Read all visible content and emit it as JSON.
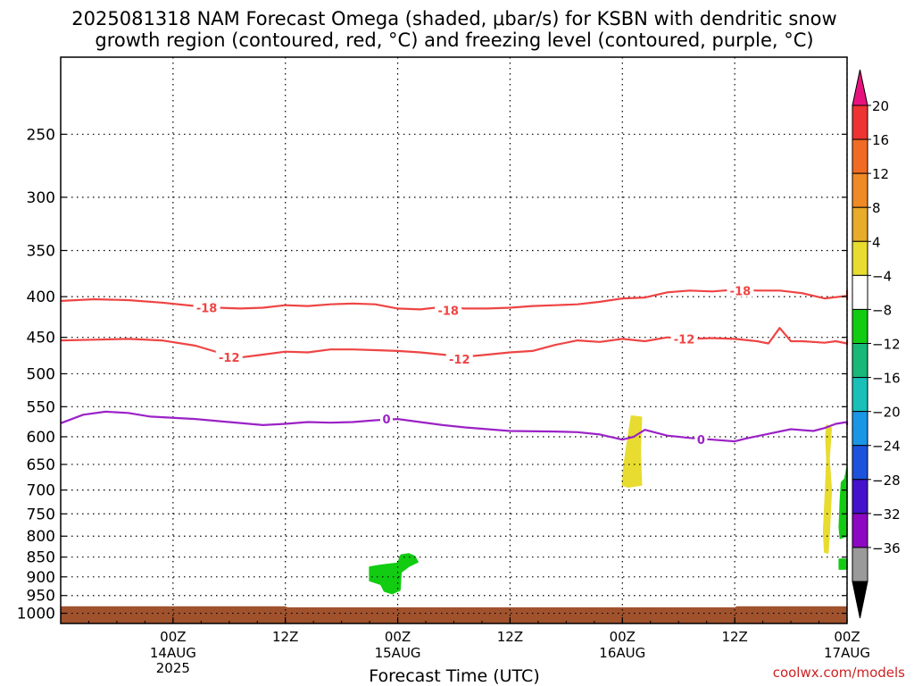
{
  "chart_data": {
    "type": "time-height",
    "title_lines": [
      "2025081318 NAM Forecast Omega (shaded, μbar/s) for KSBN with dendritic snow",
      "growth region (contoured, red, °C) and freezing level (contoured, purple, °C)"
    ],
    "xlabel": "Forecast Time (UTC)",
    "credit": "coolwx.com/models",
    "y_axis": {
      "scale": "log",
      "range": [
        200,
        1030
      ],
      "ticks": [
        250,
        300,
        350,
        400,
        450,
        500,
        550,
        600,
        650,
        700,
        750,
        800,
        850,
        900,
        950,
        1000
      ]
    },
    "x_axis": {
      "range_hours": [
        -10,
        60
      ],
      "ticks": [
        {
          "hour": 0,
          "label": "00Z",
          "sub": [
            "14AUG",
            "2025"
          ]
        },
        {
          "hour": 10,
          "label": "12Z",
          "sub": []
        },
        {
          "hour": 20,
          "label": "00Z",
          "sub": [
            "15AUG"
          ]
        },
        {
          "hour": 30,
          "label": "12Z",
          "sub": []
        },
        {
          "hour": 40,
          "label": "00Z",
          "sub": [
            "16AUG"
          ]
        },
        {
          "hour": 50,
          "label": "12Z",
          "sub": []
        },
        {
          "hour": 60,
          "label": "00Z",
          "sub": [
            "17AUG"
          ]
        }
      ]
    },
    "contours": [
      {
        "level": "-18",
        "color": "#ef4444",
        "points": [
          [
            -10,
            405
          ],
          [
            -7,
            403
          ],
          [
            -4,
            404
          ],
          [
            -1,
            407
          ],
          [
            2,
            411
          ],
          [
            4,
            413
          ],
          [
            6,
            414
          ],
          [
            8,
            413
          ],
          [
            10,
            410
          ],
          [
            12,
            411
          ],
          [
            14,
            409
          ],
          [
            16,
            408
          ],
          [
            18,
            409
          ],
          [
            20,
            414
          ],
          [
            22,
            415
          ],
          [
            24,
            412
          ],
          [
            26,
            414
          ],
          [
            28,
            414
          ],
          [
            30,
            413
          ],
          [
            32,
            411
          ],
          [
            34,
            410
          ],
          [
            36,
            409
          ],
          [
            38,
            406
          ],
          [
            40,
            402
          ],
          [
            42,
            401
          ],
          [
            44,
            395
          ],
          [
            46,
            393
          ],
          [
            48,
            394
          ],
          [
            50,
            392
          ],
          [
            52,
            393
          ],
          [
            54,
            393
          ],
          [
            56,
            396
          ],
          [
            58,
            402
          ],
          [
            60,
            399
          ],
          [
            62,
            393
          ],
          [
            64,
            404
          ]
        ],
        "labels": [
          {
            "x": 3,
            "y": 413
          },
          {
            "x": 24.5,
            "y": 416
          },
          {
            "x": 50.5,
            "y": 393
          }
        ]
      },
      {
        "level": "-12",
        "color": "#ef4444",
        "points": [
          [
            -10,
            454
          ],
          [
            -7,
            453
          ],
          [
            -4,
            452
          ],
          [
            -1,
            454
          ],
          [
            2,
            461
          ],
          [
            4,
            470
          ],
          [
            6,
            477
          ],
          [
            8,
            473
          ],
          [
            10,
            469
          ],
          [
            12,
            470
          ],
          [
            14,
            466
          ],
          [
            16,
            466
          ],
          [
            18,
            467
          ],
          [
            20,
            468
          ],
          [
            22,
            470
          ],
          [
            24,
            473
          ],
          [
            26,
            476
          ],
          [
            28,
            473
          ],
          [
            30,
            470
          ],
          [
            32,
            468
          ],
          [
            34,
            460
          ],
          [
            36,
            454
          ],
          [
            38,
            456
          ],
          [
            40,
            452
          ],
          [
            42,
            455
          ],
          [
            44,
            450
          ],
          [
            46,
            452
          ],
          [
            48,
            451
          ],
          [
            50,
            452
          ],
          [
            52,
            455
          ],
          [
            53,
            458
          ],
          [
            54,
            438
          ],
          [
            55,
            455
          ],
          [
            56,
            455
          ],
          [
            57,
            456
          ],
          [
            58,
            457
          ],
          [
            59,
            455
          ],
          [
            60,
            458
          ],
          [
            61,
            454
          ],
          [
            62,
            457
          ],
          [
            64,
            460
          ]
        ],
        "labels": [
          {
            "x": 5,
            "y": 477
          },
          {
            "x": 25.5,
            "y": 479
          },
          {
            "x": 45.5,
            "y": 452
          }
        ]
      },
      {
        "level": "0",
        "color": "#9b22c6",
        "points": [
          [
            -10,
            577
          ],
          [
            -8,
            563
          ],
          [
            -6,
            558
          ],
          [
            -4,
            560
          ],
          [
            -2,
            566
          ],
          [
            2,
            570
          ],
          [
            5,
            575
          ],
          [
            8,
            580
          ],
          [
            10,
            578
          ],
          [
            12,
            575
          ],
          [
            14,
            576
          ],
          [
            16,
            575
          ],
          [
            18,
            572
          ],
          [
            20,
            570
          ],
          [
            22,
            575
          ],
          [
            24,
            580
          ],
          [
            26,
            584
          ],
          [
            30,
            590
          ],
          [
            34,
            591
          ],
          [
            36,
            592
          ],
          [
            38,
            596
          ],
          [
            40,
            605
          ],
          [
            41,
            600
          ],
          [
            42,
            588
          ],
          [
            44,
            598
          ],
          [
            46,
            602
          ],
          [
            48,
            605
          ],
          [
            50,
            608
          ],
          [
            51,
            603
          ],
          [
            53,
            595
          ],
          [
            55,
            587
          ],
          [
            57,
            590
          ],
          [
            58,
            585
          ],
          [
            59,
            578
          ],
          [
            60,
            575
          ],
          [
            62,
            580
          ],
          [
            64,
            580
          ]
        ],
        "labels": [
          {
            "x": 19,
            "y": 570
          },
          {
            "x": 47,
            "y": 605
          }
        ]
      }
    ],
    "shaded_regions": [
      {
        "name": "green-region-15aug",
        "color": "#11cc11",
        "points": [
          [
            18.5,
            870
          ],
          [
            20,
            865
          ],
          [
            20.3,
            845
          ],
          [
            21,
            842
          ],
          [
            21.5,
            848
          ],
          [
            21.8,
            862
          ],
          [
            21,
            873
          ],
          [
            20.3,
            888
          ],
          [
            20.2,
            935
          ],
          [
            19.5,
            945
          ],
          [
            18.8,
            938
          ],
          [
            18.5,
            920
          ],
          [
            17.5,
            910
          ],
          [
            17.5,
            875
          ]
        ]
      },
      {
        "name": "yellow-region-16aug",
        "color": "#e8dc30",
        "points": [
          [
            40.8,
            565
          ],
          [
            41.7,
            567
          ],
          [
            41.6,
            625
          ],
          [
            41.7,
            690
          ],
          [
            40.5,
            694
          ],
          [
            40,
            690
          ],
          [
            40.1,
            660
          ],
          [
            40.4,
            615
          ],
          [
            40.6,
            590
          ]
        ]
      },
      {
        "name": "yellow-region-17aug",
        "color": "#e8dc30",
        "points": [
          [
            58.2,
            580
          ],
          [
            58.6,
            585
          ],
          [
            58.4,
            640
          ],
          [
            58.6,
            700
          ],
          [
            58.5,
            750
          ],
          [
            58.4,
            800
          ],
          [
            58.3,
            840
          ],
          [
            58.0,
            838
          ],
          [
            57.9,
            790
          ],
          [
            58.0,
            740
          ],
          [
            58.1,
            690
          ],
          [
            58.2,
            640
          ],
          [
            58.1,
            600
          ]
        ]
      },
      {
        "name": "green-region-17aug-upper",
        "color": "#11cc11",
        "points": [
          [
            59.8,
            678
          ],
          [
            60.2,
            655
          ],
          [
            60.3,
            700
          ],
          [
            60.2,
            760
          ],
          [
            60.3,
            800
          ],
          [
            59.4,
            805
          ],
          [
            59.3,
            780
          ],
          [
            59.4,
            720
          ],
          [
            59.5,
            685
          ]
        ]
      },
      {
        "name": "green-region-17aug-lower",
        "color": "#11cc11",
        "points": [
          [
            59.3,
            855
          ],
          [
            60.1,
            855
          ],
          [
            60.1,
            880
          ],
          [
            59.3,
            880
          ]
        ]
      }
    ],
    "terrain": {
      "color": "#a0522d",
      "top_points": [
        [
          -10,
          980
        ],
        [
          0,
          980
        ],
        [
          10,
          980
        ],
        [
          10.2,
          983
        ],
        [
          30,
          983
        ],
        [
          50,
          983
        ],
        [
          50.2,
          980
        ],
        [
          64,
          980
        ]
      ]
    },
    "colorbar": {
      "labels": [
        "20",
        "16",
        "12",
        "8",
        "4",
        "−4",
        "−8",
        "−12",
        "−16",
        "−20",
        "−24",
        "−28",
        "−32",
        "−36"
      ],
      "colors": [
        "#ee3333",
        "#f26b24",
        "#f08a26",
        "#e9ab2a",
        "#e8dc30",
        "#ffffff",
        "#11cc11",
        "#19b879",
        "#18c0b8",
        "#1a96e6",
        "#1c52dc",
        "#4412cc",
        "#8c08c2",
        "#9a9a9a"
      ],
      "top_triangle_color": "#e8127e",
      "bottom_triangle_color": "#000000"
    }
  }
}
